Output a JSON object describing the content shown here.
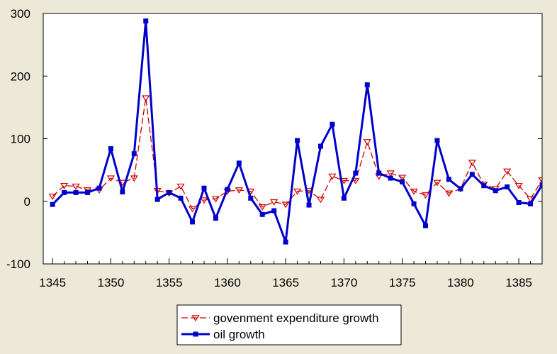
{
  "chart_data": {
    "type": "line",
    "x": [
      1345,
      1346,
      1347,
      1348,
      1349,
      1350,
      1351,
      1352,
      1353,
      1354,
      1355,
      1356,
      1357,
      1358,
      1359,
      1360,
      1361,
      1362,
      1363,
      1364,
      1365,
      1366,
      1367,
      1368,
      1369,
      1370,
      1371,
      1372,
      1373,
      1374,
      1375,
      1376,
      1377,
      1378,
      1379,
      1380,
      1381,
      1382,
      1383,
      1384,
      1385,
      1386,
      1387
    ],
    "x_ticks": [
      "1345",
      "1350",
      "1355",
      "1360",
      "1365",
      "1370",
      "1375",
      "1380",
      "1385"
    ],
    "y_ticks": [
      "300",
      "200",
      "100",
      "0",
      "-100"
    ],
    "xlim": [
      1344.2,
      1387
    ],
    "ylim": [
      -100,
      300
    ],
    "grid": false,
    "legend_position": "bottom-center",
    "series": [
      {
        "name": "govenment expenditure growth",
        "color": "#cc0000",
        "style": "dashed",
        "marker": "triangle-down-open",
        "values": [
          8,
          25,
          24,
          18,
          18,
          37,
          30,
          37,
          165,
          17,
          13,
          24,
          -12,
          2,
          4,
          16,
          18,
          16,
          -9,
          -1,
          -5,
          16,
          17,
          3,
          40,
          33,
          33,
          95,
          40,
          45,
          38,
          16,
          10,
          30,
          13,
          20,
          62,
          27,
          20,
          48,
          25,
          4,
          34
        ]
      },
      {
        "name": "oil growth",
        "color": "#0000cc",
        "style": "solid",
        "marker": "square-filled",
        "values": [
          -5,
          14,
          14,
          14,
          21,
          84,
          15,
          76,
          288,
          3,
          14,
          5,
          -33,
          21,
          -27,
          19,
          61,
          5,
          -21,
          -15,
          -65,
          97,
          -6,
          88,
          123,
          5,
          45,
          186,
          45,
          37,
          31,
          -4,
          -39,
          97,
          35,
          20,
          43,
          25,
          17,
          23,
          -2,
          -4,
          26
        ]
      }
    ]
  }
}
